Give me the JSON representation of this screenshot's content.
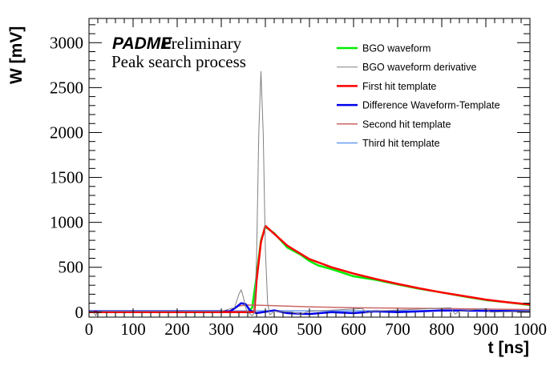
{
  "chart_data": {
    "type": "line",
    "xlabel": "t [ns]",
    "ylabel": "W [mV]",
    "xlim": [
      0,
      1000
    ],
    "ylim": [
      -55,
      3270
    ],
    "xticks": [
      0,
      100,
      200,
      300,
      400,
      500,
      600,
      700,
      800,
      900,
      1000
    ],
    "yticks": [
      0,
      500,
      1000,
      1500,
      2000,
      2500,
      3000
    ],
    "grid": false,
    "legend_position": "top-right",
    "annotations": {
      "experiment": "PADME",
      "status": "Preliminary",
      "subtitle": "Peak search process"
    },
    "series": [
      {
        "name": "BGO waveform",
        "color": "#00ee00",
        "x": [
          0,
          360,
          370,
          380,
          390,
          400,
          420,
          450,
          480,
          500,
          520,
          550,
          600,
          650,
          700,
          750,
          800,
          850,
          900,
          950,
          1000
        ],
        "y": [
          0,
          0,
          50,
          400,
          800,
          950,
          880,
          720,
          640,
          570,
          520,
          480,
          400,
          360,
          310,
          260,
          220,
          175,
          135,
          110,
          80
        ]
      },
      {
        "name": "BGO waveform derivative",
        "color": "#808080",
        "x": [
          0,
          10,
          15,
          20,
          300,
          330,
          340,
          345,
          350,
          355,
          360,
          370,
          375,
          380,
          385,
          390,
          395,
          400,
          405,
          410,
          420,
          460,
          480,
          500,
          620,
          630,
          640,
          820,
          830,
          840,
          900,
          910,
          1000
        ],
        "y": [
          10,
          10,
          -40,
          10,
          10,
          50,
          200,
          250,
          170,
          50,
          0,
          -40,
          0,
          600,
          2000,
          2680,
          2000,
          700,
          100,
          -30,
          10,
          0,
          -20,
          10,
          40,
          -10,
          10,
          50,
          -20,
          10,
          40,
          0,
          10
        ]
      },
      {
        "name": "First hit template",
        "color": "#ff0000",
        "x": [
          0,
          375,
          380,
          390,
          400,
          450,
          500,
          550,
          600,
          650,
          700,
          750,
          800,
          850,
          900,
          950,
          1000
        ],
        "y": [
          0,
          0,
          350,
          780,
          960,
          740,
          590,
          500,
          430,
          370,
          315,
          265,
          220,
          180,
          140,
          110,
          85
        ]
      },
      {
        "name": "Difference Waveform-Template",
        "color": "#0000ee",
        "x": [
          0,
          320,
          335,
          345,
          355,
          365,
          380,
          400,
          420,
          450,
          500,
          550,
          600,
          650,
          700,
          750,
          800,
          900,
          1000
        ],
        "y": [
          10,
          10,
          60,
          100,
          90,
          20,
          -10,
          5,
          20,
          -10,
          -20,
          0,
          -10,
          10,
          0,
          10,
          20,
          15,
          10
        ]
      },
      {
        "name": "Second hit template",
        "color": "#cc6666",
        "x": [
          0,
          320,
          340,
          360,
          400,
          500,
          600,
          800,
          1000
        ],
        "y": [
          10,
          10,
          70,
          80,
          75,
          60,
          50,
          40,
          30
        ]
      },
      {
        "name": "Third hit template",
        "color": "#6699ee",
        "x": [
          0,
          1000
        ],
        "y": [
          15,
          15
        ]
      }
    ]
  }
}
